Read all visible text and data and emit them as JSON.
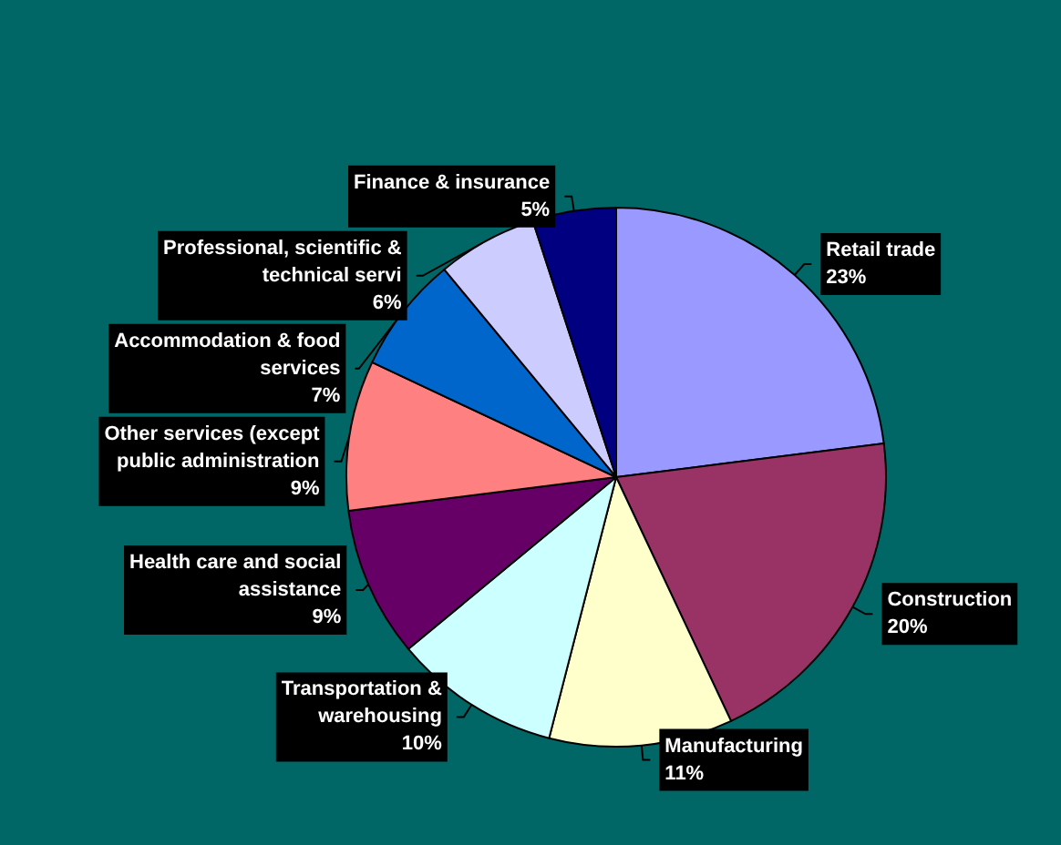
{
  "chart_data": {
    "type": "pie",
    "categories": [
      "Retail trade",
      "Construction",
      "Manufacturing",
      "Transportation & warehousing",
      "Health care and social assistance",
      "Other services (except public administration",
      "Accommodation & food services",
      "Professional, scientific & technical servi",
      "Finance & insurance"
    ],
    "values": [
      23,
      20,
      11,
      10,
      9,
      9,
      7,
      6,
      5
    ],
    "value_labels": [
      "23%",
      "20%",
      "11%",
      "10%",
      "9%",
      "9%",
      "7%",
      "6%",
      "5%"
    ],
    "colors": [
      "#9999ff",
      "#993366",
      "#ffffcc",
      "#ccffff",
      "#660066",
      "#ff8080",
      "#0066cc",
      "#ccccff",
      "#000080"
    ],
    "legend": false
  }
}
